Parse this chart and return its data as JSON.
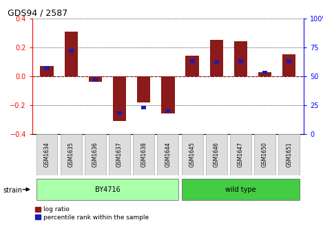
{
  "title": "GDS94 / 2587",
  "samples": [
    "GSM1634",
    "GSM1635",
    "GSM1636",
    "GSM1637",
    "GSM1638",
    "GSM1644",
    "GSM1645",
    "GSM1646",
    "GSM1647",
    "GSM1650",
    "GSM1651"
  ],
  "log_ratio": [
    0.07,
    0.31,
    -0.04,
    -0.31,
    -0.18,
    -0.26,
    0.14,
    0.25,
    0.24,
    0.03,
    0.15
  ],
  "percentile": [
    57,
    72,
    47,
    18,
    23,
    20,
    63,
    62,
    63,
    53,
    63
  ],
  "bar_color": "#8B1A1A",
  "blue_color": "#1C1CB0",
  "red_dashed_color": "#CC0000",
  "ylim": [
    -0.4,
    0.4
  ],
  "y2lim": [
    0,
    100
  ],
  "yticks": [
    -0.4,
    -0.2,
    0.0,
    0.2,
    0.4
  ],
  "y2ticks": [
    0,
    25,
    50,
    75,
    100
  ],
  "grid_color": "#000000",
  "groups": [
    {
      "label": "BY4716",
      "start": 0,
      "end": 5,
      "color": "#AAFFAA"
    },
    {
      "label": "wild type",
      "start": 6,
      "end": 10,
      "color": "#44CC44"
    }
  ],
  "strain_label": "strain",
  "legend_log_ratio": "log ratio",
  "legend_percentile": "percentile rank within the sample",
  "bar_width": 0.55,
  "blue_bar_width": 0.2,
  "blue_bar_height": 0.025
}
